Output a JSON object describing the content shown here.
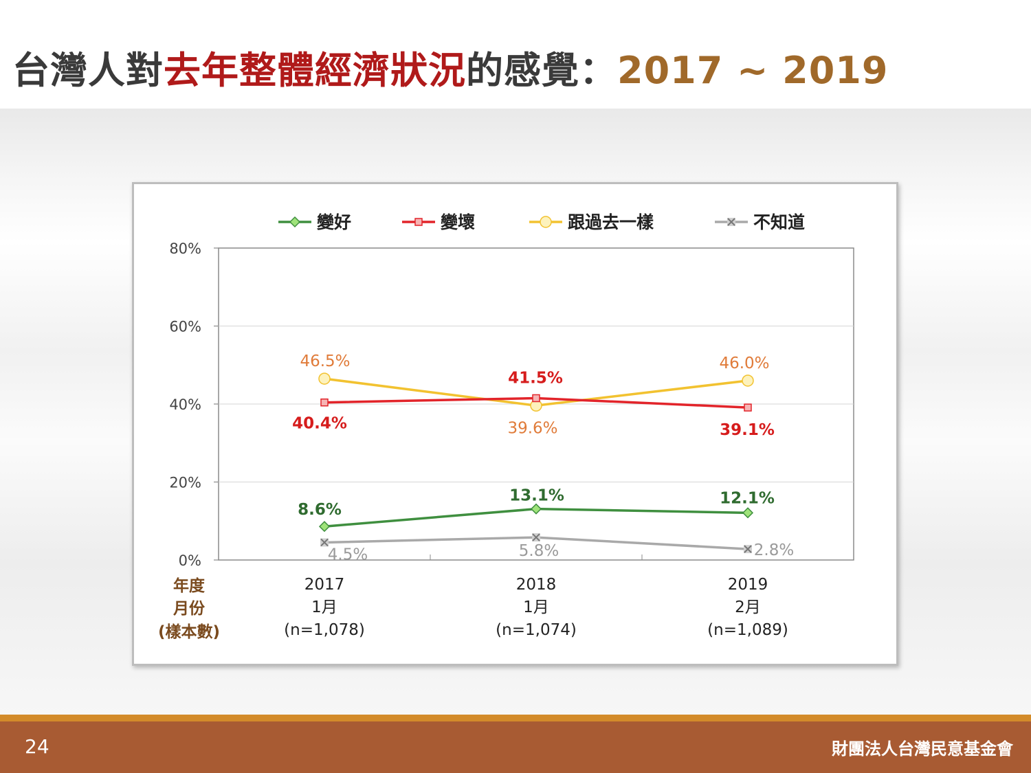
{
  "slide": {
    "title_part1": "台灣人對",
    "title_part2": "去年整體經濟狀況",
    "title_part3": "的感覺：",
    "title_part4": "2017 ~ 2019",
    "page_number": "24",
    "organization": "財團法人台灣民意基金會"
  },
  "colors": {
    "title_dark": "#3a3a3a",
    "title_red": "#b01a1a",
    "title_gold": "#a0692a",
    "footer": "#a85b33",
    "footer_stripe": "#d38b2a"
  },
  "chart_data": {
    "type": "line",
    "x_categories": [
      {
        "year": "2017",
        "month": "1月",
        "sample": "(n=1,078)"
      },
      {
        "year": "2018",
        "month": "1月",
        "sample": "(n=1,074)"
      },
      {
        "year": "2019",
        "month": "2月",
        "sample": "(n=1,089)"
      }
    ],
    "row_labels": [
      "年度",
      "月份",
      "(樣本數)"
    ],
    "ylim": [
      0,
      80
    ],
    "yticks": [
      "0%",
      "20%",
      "40%",
      "60%",
      "80%"
    ],
    "ytick_values": [
      0,
      20,
      40,
      60,
      80
    ],
    "grid": true,
    "legend_position": "top",
    "series": [
      {
        "name": "變好",
        "values": [
          8.6,
          13.1,
          12.1
        ],
        "labels": [
          "8.6%",
          "13.1%",
          "12.1%"
        ],
        "color": "#3f8f3f",
        "label_color": "#2f6b2f",
        "marker": "diamond",
        "marker_fill": "#9fe37a"
      },
      {
        "name": "變壞",
        "values": [
          40.4,
          41.5,
          39.1
        ],
        "labels": [
          "40.4%",
          "41.5%",
          "39.1%"
        ],
        "color": "#e2242a",
        "label_color": "#d61c1c",
        "marker": "square",
        "marker_fill": "#f6b4b4"
      },
      {
        "name": "跟過去一樣",
        "values": [
          46.5,
          39.6,
          46.0
        ],
        "labels": [
          "46.5%",
          "39.6%",
          "46.0%"
        ],
        "color": "#f2c230",
        "label_color": "#e07b39",
        "marker": "circle",
        "marker_fill": "#fdf2bc"
      },
      {
        "name": "不知道",
        "values": [
          4.5,
          5.8,
          2.8
        ],
        "labels": [
          "4.5%",
          "5.8%",
          "2.8%"
        ],
        "color": "#a9a9a9",
        "label_color": "#9a9a9a",
        "marker": "x",
        "marker_fill": "#d0d0d0"
      }
    ]
  }
}
